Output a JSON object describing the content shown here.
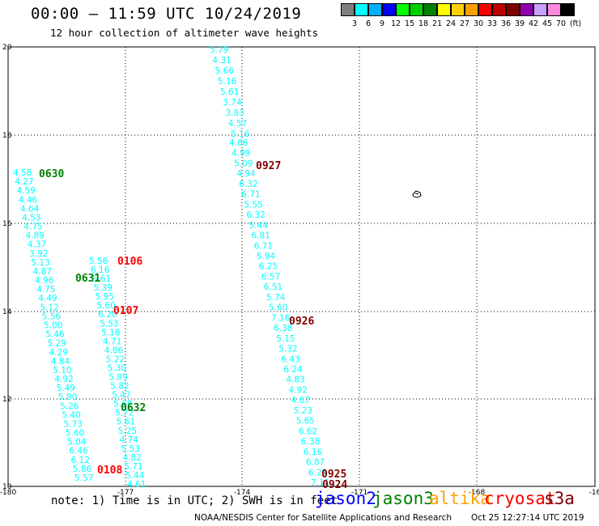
{
  "header": {
    "title": "00:00 – 11:59 UTC 10/24/2019",
    "subtitle": "12 hour collection of altimeter wave heights"
  },
  "legend": {
    "unit": "(ft)",
    "colors": [
      "#7f7f7f",
      "#00ffff",
      "#00b0ff",
      "#0000ff",
      "#00ff00",
      "#00d000",
      "#008000",
      "#ffff00",
      "#ffd000",
      "#ffa000",
      "#ff0000",
      "#c00000",
      "#800000",
      "#9000b0",
      "#c8a0ff",
      "#ff88dd",
      "#000000"
    ],
    "labels": [
      "3",
      "6",
      "9",
      "12",
      "15",
      "18",
      "21",
      "24",
      "27",
      "30",
      "33",
      "36",
      "39",
      "42",
      "45",
      "70"
    ]
  },
  "axes": {
    "x_ticks": [
      "-180",
      "-177",
      "-174",
      "-171",
      "-168",
      "-16"
    ],
    "y_ticks": [
      "20",
      "18",
      "16",
      "14",
      "12",
      "10"
    ]
  },
  "tracks": [
    {
      "color": "#00ffff",
      "x0": 259,
      "y0": 61,
      "x1": 285,
      "y1": 165,
      "values": [
        "5.79",
        "4.31",
        "5.66",
        "5.16",
        "5.61",
        "3.74",
        "3.83",
        "4.57",
        "5.16"
      ]
    },
    {
      "color": "#00ffff",
      "x0": 283,
      "y0": 176,
      "x1": 384,
      "y1": 596,
      "values": [
        "4.86",
        "4.99",
        "5.09",
        "4.94",
        "6.32",
        "6.71",
        "5.55",
        "6.32",
        "5.44",
        "6.81",
        "6.71",
        "5.94",
        "6.25",
        "6.57",
        "6.51",
        "5.74",
        "5.60",
        "7.16",
        "6.38",
        "5.15",
        "5.32",
        "6.43",
        "6.24",
        "4.83",
        "4.92",
        "4.67",
        "5.23",
        "5.65",
        "6.62",
        "6.38",
        "6.16",
        "6.87",
        "6.23",
        "7.11"
      ]
    },
    {
      "color": "#00ffff",
      "x0": 16,
      "y0": 213,
      "x1": 92,
      "y1": 590,
      "values": [
        "4.58",
        "4.27",
        "4.59",
        "4.46",
        "4.64",
        "4.53",
        "4.75",
        "4.89",
        "4.37",
        "3.92",
        "5.13",
        "4.87",
        "4.96",
        "4.75",
        "4.49",
        "5.12",
        "5.56",
        "5.00",
        "5.46",
        "5.29",
        "4.29",
        "4.84",
        "5.10",
        "4.92",
        "5.49",
        "5.80",
        "5.26",
        "5.40",
        "5.73",
        "5.60",
        "5.04",
        "6.46",
        "6.12",
        "5.86",
        "5.57"
      ]
    },
    {
      "color": "#00ffff",
      "x0": 110,
      "y0": 322,
      "x1": 157,
      "y1": 598,
      "values": [
        "5.56",
        "6.16",
        "5.61",
        "5.39",
        "5.95",
        "5.60",
        "6.20",
        "5.53",
        "5.18",
        "4.71",
        "4.86",
        "5.22",
        "5.30",
        "5.89",
        "5.82",
        "5.47",
        "5.68",
        "5.72",
        "5.61",
        "5.25",
        "4.74",
        "5.53",
        "4.82",
        "5.71",
        "5.44",
        "4.61"
      ]
    }
  ],
  "passes": [
    {
      "label": "0927",
      "color": "#800000",
      "x": 316,
      "y": 198
    },
    {
      "label": "0630",
      "color": "#008000",
      "x": 48,
      "y": 208
    },
    {
      "label": "0106",
      "color": "#ff0000",
      "x": 145,
      "y": 316
    },
    {
      "label": "0631",
      "color": "#008000",
      "x": 93,
      "y": 337
    },
    {
      "label": "0107",
      "color": "#ff0000",
      "x": 140,
      "y": 377
    },
    {
      "label": "0926",
      "color": "#800000",
      "x": 357,
      "y": 390
    },
    {
      "label": "0632",
      "color": "#008000",
      "x": 149,
      "y": 497
    },
    {
      "label": "0108",
      "color": "#ff0000",
      "x": 120,
      "y": 574
    },
    {
      "label": "0925",
      "color": "#800000",
      "x": 397,
      "y": 579
    },
    {
      "label": "0924",
      "color": "#800000",
      "x": 398,
      "y": 592
    }
  ],
  "footer": {
    "note": "note: 1) Time is in UTC; 2) SWH is in feet",
    "satellites": [
      {
        "name": "jason2",
        "color": "#0000ff"
      },
      {
        "name": "jason3",
        "color": "#008000"
      },
      {
        "name": "altika",
        "color": "#ffa000"
      },
      {
        "name": "cryosat",
        "color": "#ff0000"
      },
      {
        "name": "s3a",
        "color": "#800000"
      }
    ],
    "credit": "NOAA/NESDIS Center for Satellite Applications and Research",
    "timestamp": "Oct 25 12:27:14 UTC 2019"
  }
}
